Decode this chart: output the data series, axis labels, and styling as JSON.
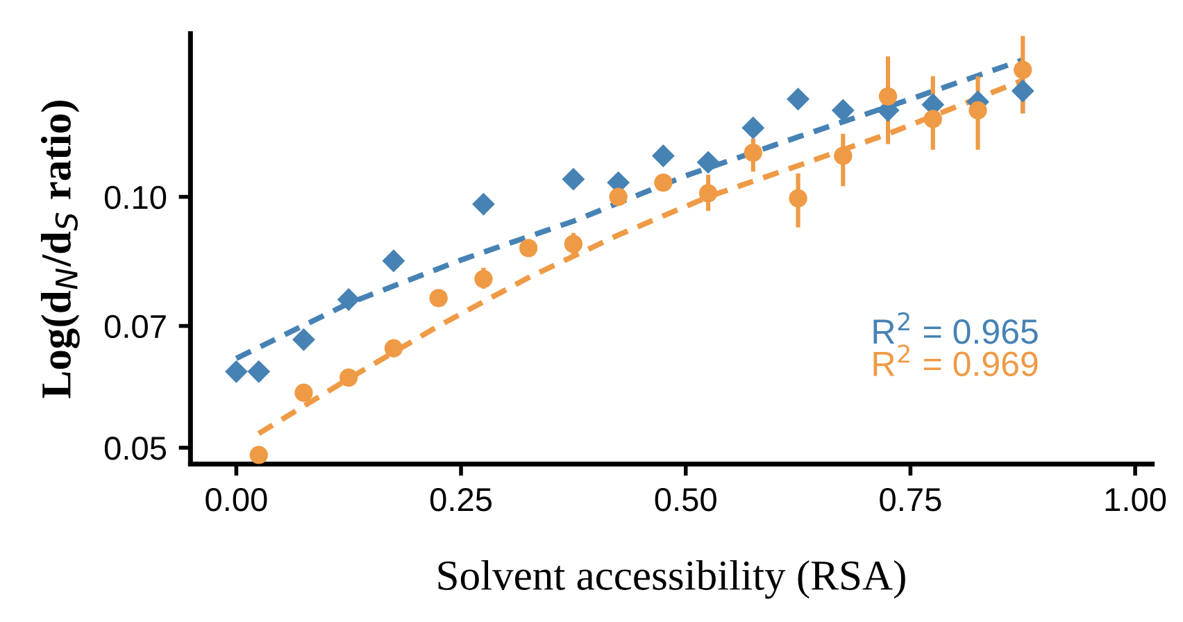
{
  "chart_data": {
    "type": "scatter",
    "xlabel": "Solvent accessibility (RSA)",
    "ylabel": "Log(d$_{N}$/d$_{S}$ ratio)",
    "log": "y",
    "xlim": [
      -0.051,
      1.019
    ],
    "xticks": [
      {
        "value": 0,
        "label": "0.00"
      },
      0.25,
      {
        "value": 0.5,
        "label": "0.50"
      },
      0.75,
      {
        "value": 1,
        "label": "1.00"
      }
    ],
    "ylim": [
      0.0478,
      0.157
    ],
    "yticks": [
      0.05,
      0.07,
      {
        "value": 0.1,
        "label": "0.10"
      }
    ],
    "grid": false,
    "annotations": [
      "R$^{2}$ = 0.965",
      "R$^{2}$ = 0.969"
    ],
    "series": [
      {
        "color": "#4682b4",
        "marker": "diamond",
        "x": [
          0.0,
          0.025,
          0.075,
          0.125,
          0.175,
          0.275,
          0.375,
          0.425,
          0.475,
          0.525,
          0.575,
          0.625,
          0.675,
          0.725,
          0.775,
          0.825,
          0.875
        ],
        "values": [
          0.0617,
          0.0617,
          0.0674,
          0.0753,
          0.0838,
          0.098,
          0.105,
          0.104,
          0.112,
          0.11,
          0.121,
          0.131,
          0.127,
          0.127,
          0.129,
          0.13,
          0.134
        ],
        "errors": [
          null,
          null,
          null,
          null,
          null,
          null,
          null,
          null,
          null,
          null,
          null,
          null,
          null,
          null,
          null,
          null,
          [
            0.126,
            0.138
          ]
        ]
      },
      {
        "color": "#ef9a45",
        "marker": "circle",
        "x": [
          0.025,
          0.075,
          0.125,
          0.175,
          0.225,
          0.275,
          0.325,
          0.375,
          0.425,
          0.475,
          0.525,
          0.575,
          0.625,
          0.675,
          0.725,
          0.775,
          0.825,
          0.875
        ],
        "values": [
          0.049,
          0.0582,
          0.0607,
          0.0658,
          0.0756,
          0.0797,
          0.0868,
          0.0878,
          0.1,
          0.104,
          0.101,
          0.113,
          0.0996,
          0.112,
          0.132,
          0.124,
          0.127,
          0.142
        ],
        "errors": [
          null,
          null,
          null,
          null,
          null,
          [
            0.0776,
            0.0822
          ],
          null,
          [
            0.0851,
            0.0905
          ],
          null,
          null,
          [
            0.0962,
            0.1063
          ],
          [
            0.1072,
            0.1175
          ],
          [
            0.0919,
            0.1067
          ],
          [
            0.103,
            0.119
          ],
          [
            0.1157,
            0.1474
          ],
          [
            0.1139,
            0.1396
          ],
          [
            0.1139,
            0.1396
          ],
          [
            0.1259,
            0.156
          ]
        ]
      },
      {
        "type": "line",
        "color": "#4682b4",
        "line_style": "dashed",
        "marker": "none",
        "x": [
          0.0,
          0.125,
          0.25,
          0.375,
          0.5,
          0.625,
          0.75,
          0.875
        ],
        "values": [
          0.064,
          0.0745,
          0.084,
          0.0935,
          0.106,
          0.118,
          0.131,
          0.146
        ]
      },
      {
        "type": "line",
        "color": "#ef9a45",
        "line_style": "dashed",
        "marker": "none",
        "x": [
          0.025,
          0.125,
          0.225,
          0.325,
          0.425,
          0.525,
          0.625,
          0.725,
          0.875
        ],
        "values": [
          0.052,
          0.0605,
          0.07,
          0.08,
          0.09,
          0.1,
          0.109,
          0.119,
          0.138
        ]
      }
    ]
  }
}
